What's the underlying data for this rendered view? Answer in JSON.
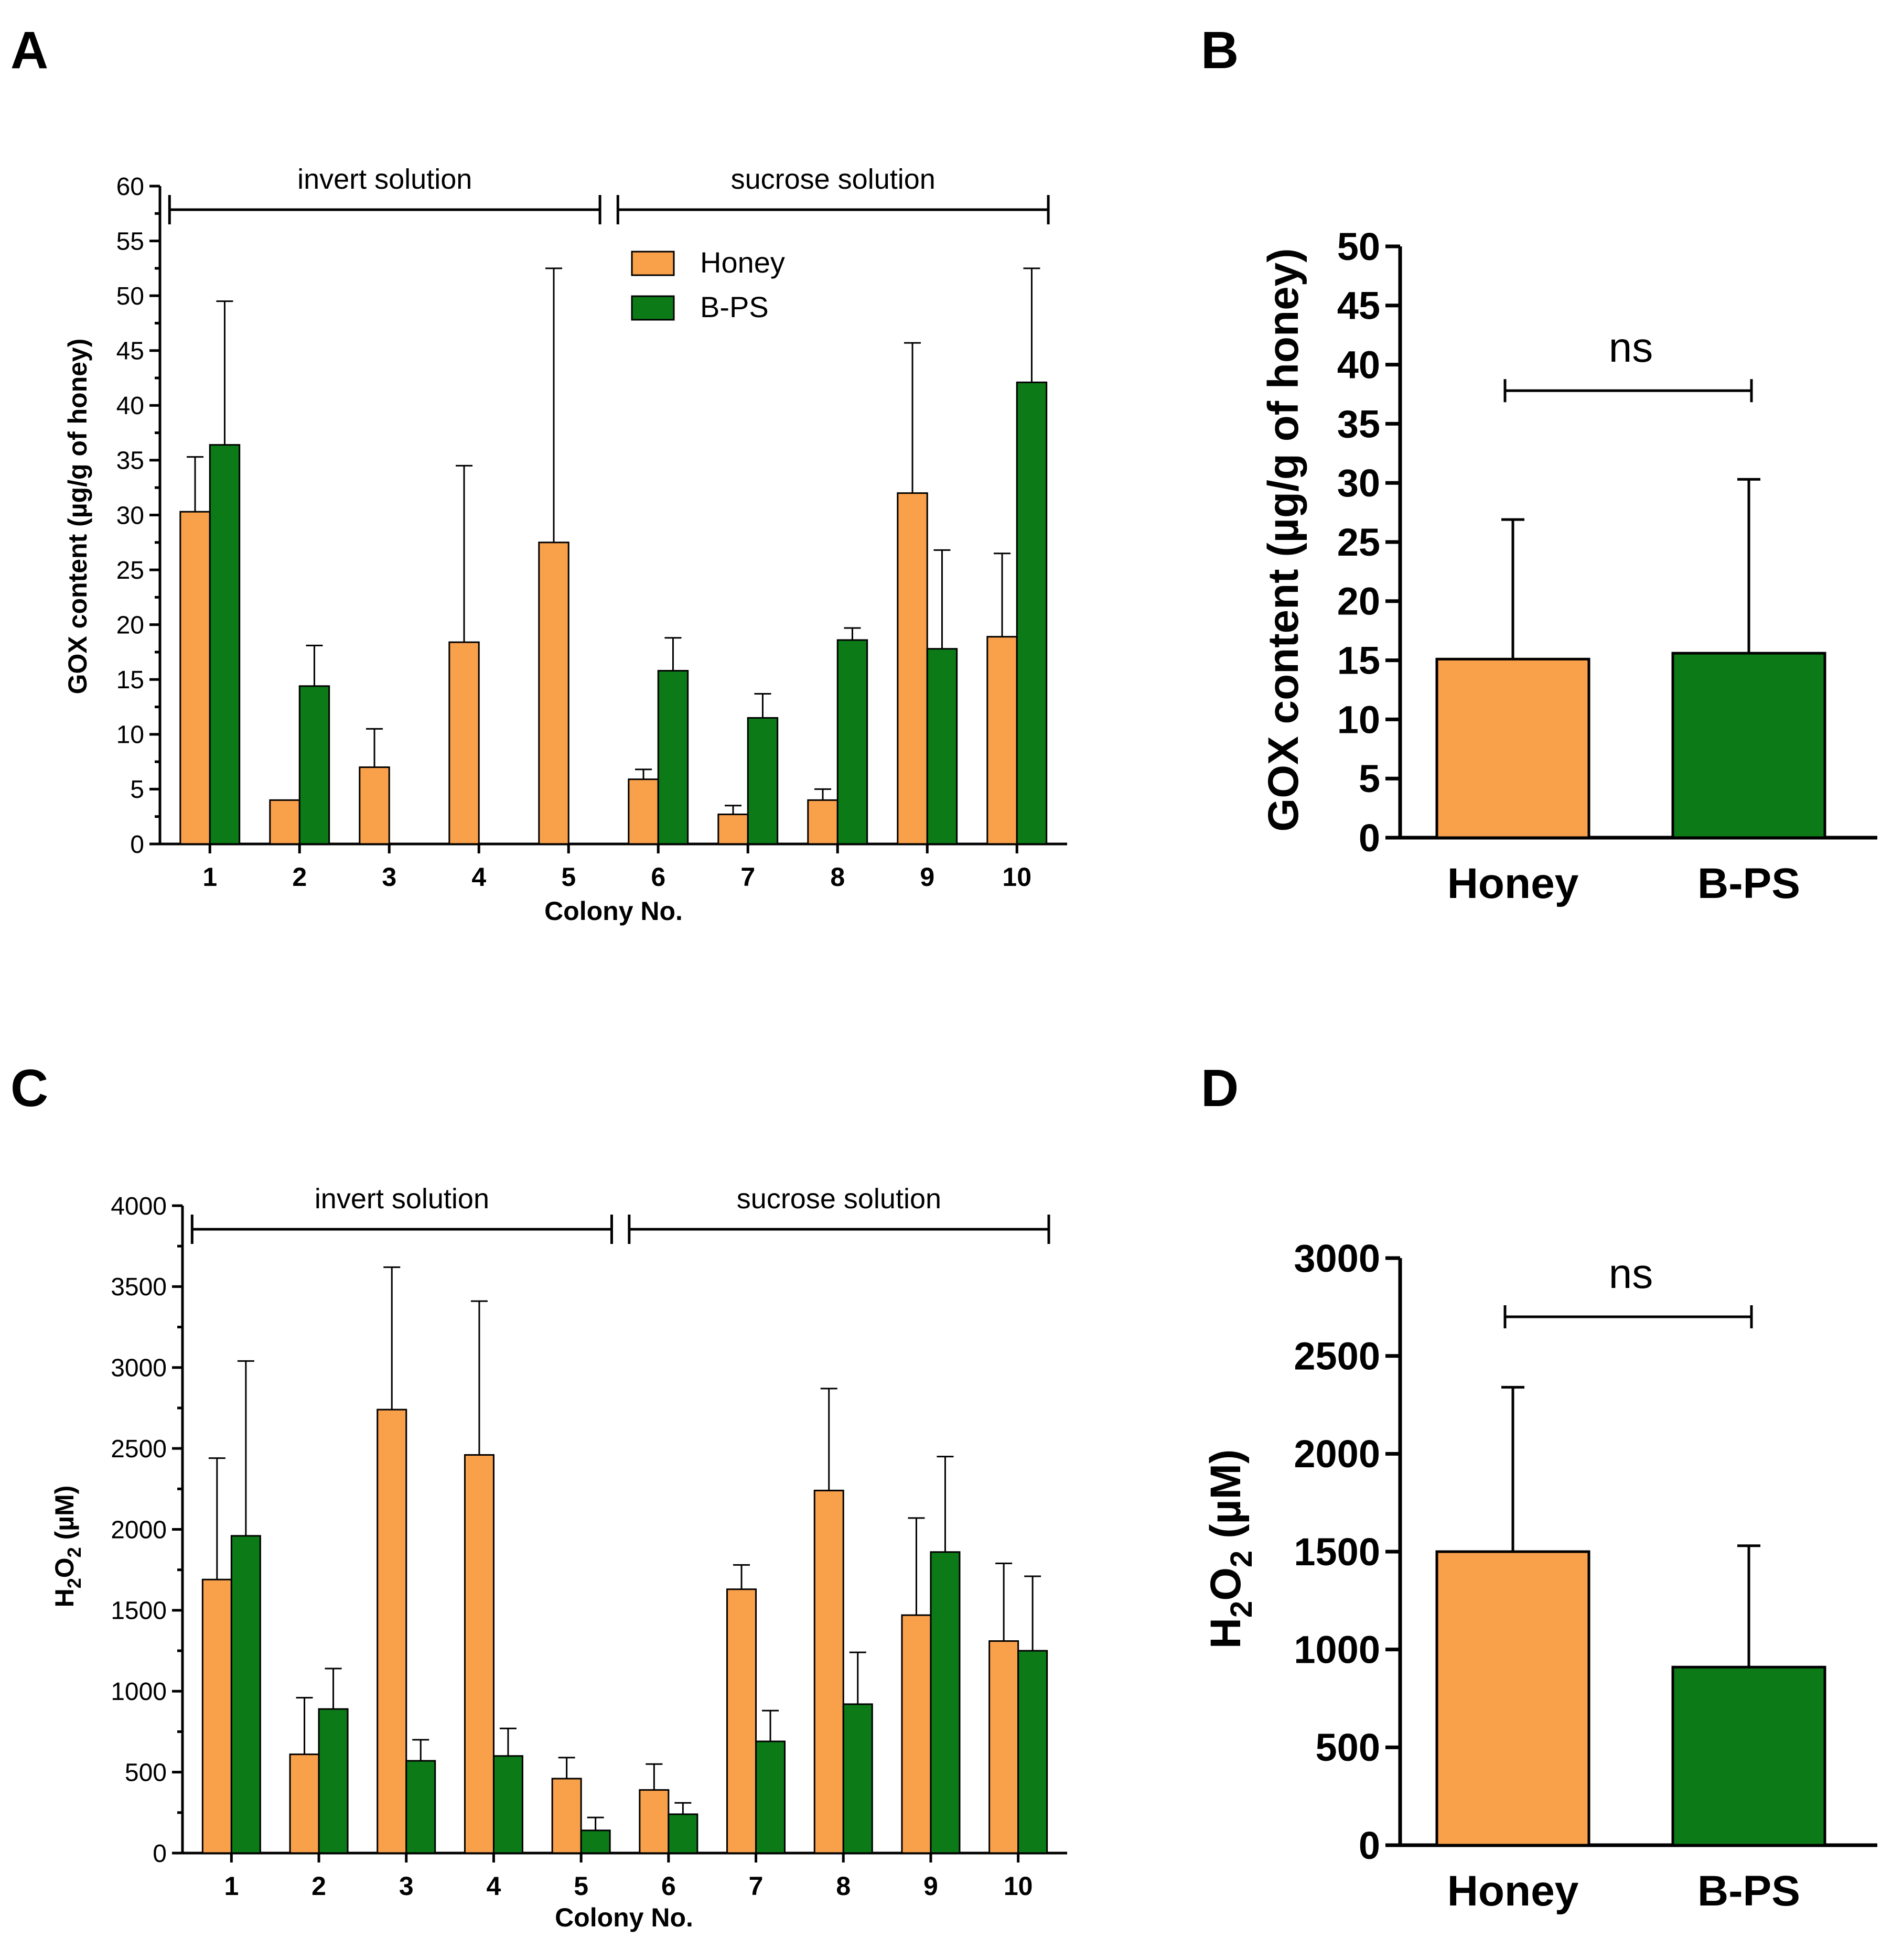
{
  "colors": {
    "honey": "#F9A04B",
    "bps": "#0B7A17",
    "axis": "#000000"
  },
  "chart_data": [
    {
      "id": "A",
      "type": "bar",
      "panel_label": "A",
      "xlabel": "Colony No.",
      "ylabel": "GOX content (µg/g of honey)",
      "ylim": [
        0,
        60
      ],
      "ytick_step": 5,
      "categories": [
        "1",
        "2",
        "3",
        "4",
        "5",
        "6",
        "7",
        "8",
        "9",
        "10"
      ],
      "series": [
        {
          "name": "Honey",
          "color_key": "honey",
          "values": [
            30.3,
            4,
            7,
            18.4,
            27.5,
            5.9,
            2.7,
            4.0,
            32.0,
            18.9
          ],
          "errors": [
            5.0,
            0,
            3.5,
            16.1,
            25.0,
            0.9,
            0.8,
            1.0,
            13.7,
            7.6
          ]
        },
        {
          "name": "B-PS",
          "color_key": "bps",
          "values": [
            36.4,
            14.4,
            null,
            null,
            null,
            15.8,
            11.5,
            18.6,
            17.8,
            42.1
          ],
          "errors": [
            13.1,
            3.7,
            null,
            null,
            null,
            3.0,
            2.2,
            1.1,
            9.0,
            10.4
          ]
        }
      ],
      "groups": [
        {
          "label": "invert solution",
          "from": "1",
          "to": "5"
        },
        {
          "label": "sucrose solution",
          "from": "6",
          "to": "10"
        }
      ],
      "legend": {
        "placement": "top-center",
        "entries": [
          "Honey",
          "B-PS"
        ]
      }
    },
    {
      "id": "B",
      "type": "bar",
      "panel_label": "B",
      "ylabel": "GOX content (µg/g of honey)",
      "ylim": [
        0,
        50
      ],
      "ytick_step": 5,
      "categories": [
        "Honey",
        "B-PS"
      ],
      "values": [
        15.1,
        15.6
      ],
      "errors": [
        11.8,
        14.7
      ],
      "color_keys": [
        "honey",
        "bps"
      ],
      "significance": {
        "label": "ns",
        "y": 37.8
      }
    },
    {
      "id": "C",
      "type": "bar",
      "panel_label": "C",
      "xlabel": "Colony No.",
      "ylabel_main": "H",
      "ylabel_sub": "2",
      "ylabel_mid": "O",
      "ylabel_sub2": "2",
      "ylabel_tail": " (µM)",
      "ylim": [
        0,
        4000
      ],
      "ytick_step": 500,
      "categories": [
        "1",
        "2",
        "3",
        "4",
        "5",
        "6",
        "7",
        "8",
        "9",
        "10"
      ],
      "series": [
        {
          "name": "Honey",
          "color_key": "honey",
          "values": [
            1690,
            610,
            2740,
            2460,
            460,
            390,
            1630,
            2240,
            1470,
            1310
          ],
          "errors": [
            750,
            350,
            880,
            950,
            130,
            160,
            150,
            630,
            600,
            480
          ]
        },
        {
          "name": "B-PS",
          "color_key": "bps",
          "values": [
            1960,
            890,
            570,
            600,
            140,
            240,
            690,
            920,
            1860,
            1250
          ],
          "errors": [
            1080,
            250,
            130,
            170,
            80,
            70,
            190,
            320,
            590,
            460
          ]
        }
      ],
      "groups": [
        {
          "label": "invert solution",
          "from": "1",
          "to": "5"
        },
        {
          "label": "sucrose solution",
          "from": "6",
          "to": "10"
        }
      ]
    },
    {
      "id": "D",
      "type": "bar",
      "panel_label": "D",
      "ylabel_main": "H",
      "ylabel_sub": "2",
      "ylabel_mid": "O",
      "ylabel_sub2": "2",
      "ylabel_tail": " (µM)",
      "ylim": [
        0,
        3000
      ],
      "ytick_step": 500,
      "categories": [
        "Honey",
        "B-PS"
      ],
      "values": [
        1500,
        910
      ],
      "errors": [
        840,
        620
      ],
      "color_keys": [
        "honey",
        "bps"
      ],
      "significance": {
        "label": "ns",
        "y": 2700
      }
    }
  ]
}
